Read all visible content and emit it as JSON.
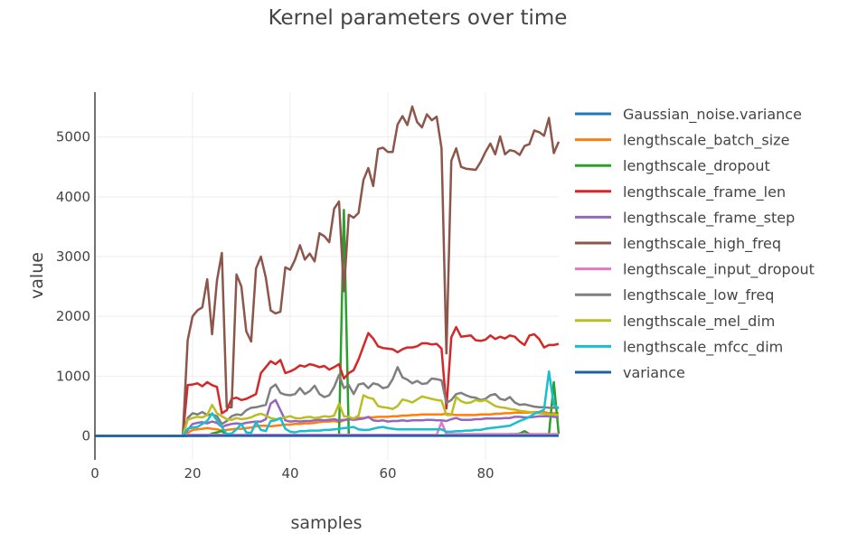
{
  "chart_data": {
    "type": "line",
    "title": "Kernel parameters over time",
    "xlabel": "samples",
    "ylabel": "value",
    "xlim": [
      0,
      95
    ],
    "ylim": [
      -400,
      5750
    ],
    "xticks": [
      0,
      20,
      40,
      60,
      80
    ],
    "yticks": [
      0,
      1000,
      2000,
      3000,
      4000,
      5000
    ],
    "grid": true,
    "legend": "right",
    "x": [
      0,
      1,
      2,
      3,
      4,
      5,
      6,
      7,
      8,
      9,
      10,
      11,
      12,
      13,
      14,
      15,
      16,
      17,
      18,
      19,
      20,
      21,
      22,
      23,
      24,
      25,
      26,
      27,
      28,
      29,
      30,
      31,
      32,
      33,
      34,
      35,
      36,
      37,
      38,
      39,
      40,
      41,
      42,
      43,
      44,
      45,
      46,
      47,
      48,
      49,
      50,
      51,
      52,
      53,
      54,
      55,
      56,
      57,
      58,
      59,
      60,
      61,
      62,
      63,
      64,
      65,
      66,
      67,
      68,
      69,
      70,
      71,
      72,
      73,
      74,
      75,
      76,
      77,
      78,
      79,
      80,
      81,
      82,
      83,
      84,
      85,
      86,
      87,
      88,
      89,
      90,
      91,
      92,
      93,
      94,
      95
    ],
    "series": [
      {
        "name": "Gaussian_noise.variance",
        "color": "#1f77b4",
        "values": [
          0,
          0,
          0,
          0,
          0,
          0,
          0,
          0,
          0,
          0,
          0,
          0,
          0,
          0,
          0,
          0,
          0,
          0,
          0,
          5,
          5,
          5,
          5,
          5,
          5,
          5,
          5,
          5,
          5,
          5,
          5,
          5,
          5,
          5,
          5,
          5,
          5,
          5,
          5,
          5,
          5,
          5,
          5,
          5,
          5,
          5,
          5,
          5,
          5,
          5,
          5,
          5,
          5,
          5,
          5,
          5,
          5,
          5,
          5,
          5,
          5,
          5,
          5,
          5,
          5,
          5,
          5,
          5,
          5,
          5,
          5,
          5,
          5,
          5,
          5,
          5,
          5,
          5,
          5,
          5,
          5,
          5,
          5,
          5,
          5,
          5,
          5,
          5,
          5,
          5,
          5,
          5,
          5,
          5,
          5,
          5
        ]
      },
      {
        "name": "lengthscale_batch_size",
        "color": "#ff7f0e",
        "values": [
          0,
          0,
          0,
          0,
          0,
          0,
          0,
          0,
          0,
          0,
          0,
          0,
          0,
          0,
          0,
          0,
          0,
          0,
          0,
          50,
          100,
          110,
          120,
          130,
          120,
          110,
          90,
          100,
          110,
          120,
          120,
          130,
          140,
          160,
          170,
          170,
          160,
          170,
          180,
          190,
          190,
          200,
          200,
          210,
          210,
          220,
          230,
          240,
          240,
          250,
          230,
          260,
          280,
          290,
          300,
          300,
          310,
          310,
          320,
          320,
          320,
          330,
          330,
          340,
          340,
          350,
          350,
          360,
          360,
          360,
          360,
          360,
          370,
          360,
          350,
          350,
          350,
          350,
          350,
          360,
          360,
          360,
          370,
          370,
          380,
          380,
          390,
          390,
          390,
          390,
          400,
          400,
          400,
          380,
          380,
          380
        ]
      },
      {
        "name": "lengthscale_dropout",
        "color": "#2ca02c",
        "values": [
          0,
          0,
          0,
          0,
          0,
          0,
          0,
          0,
          0,
          0,
          0,
          0,
          0,
          0,
          0,
          0,
          0,
          0,
          0,
          0,
          0,
          0,
          0,
          0,
          40,
          60,
          80,
          20,
          10,
          10,
          10,
          10,
          10,
          10,
          10,
          10,
          10,
          10,
          10,
          10,
          10,
          10,
          10,
          10,
          10,
          10,
          10,
          10,
          10,
          10,
          10,
          3780,
          10,
          10,
          10,
          10,
          10,
          10,
          10,
          10,
          10,
          10,
          10,
          10,
          10,
          10,
          10,
          10,
          10,
          10,
          10,
          10,
          10,
          10,
          10,
          10,
          10,
          10,
          10,
          10,
          10,
          10,
          10,
          10,
          10,
          30,
          30,
          40,
          80,
          30,
          20,
          20,
          20,
          20,
          900,
          30
        ]
      },
      {
        "name": "lengthscale_frame_len",
        "color": "#d62728",
        "values": [
          0,
          0,
          0,
          0,
          0,
          0,
          0,
          0,
          0,
          0,
          0,
          0,
          0,
          0,
          0,
          0,
          0,
          0,
          0,
          850,
          860,
          880,
          830,
          900,
          850,
          820,
          380,
          430,
          620,
          640,
          600,
          620,
          660,
          700,
          1050,
          1150,
          1250,
          1200,
          1270,
          1050,
          1080,
          1120,
          1180,
          1160,
          1200,
          1180,
          1150,
          1170,
          1110,
          1150,
          1200,
          960,
          1050,
          1100,
          1280,
          1500,
          1720,
          1630,
          1500,
          1470,
          1460,
          1450,
          1400,
          1450,
          1480,
          1480,
          1500,
          1550,
          1550,
          1530,
          1540,
          1460,
          460,
          1650,
          1820,
          1660,
          1670,
          1680,
          1600,
          1590,
          1610,
          1680,
          1620,
          1660,
          1630,
          1680,
          1660,
          1580,
          1520,
          1680,
          1700,
          1620,
          1480,
          1520,
          1520,
          1540
        ]
      },
      {
        "name": "lengthscale_frame_step",
        "color": "#9467bd",
        "values": [
          0,
          0,
          0,
          0,
          0,
          0,
          0,
          0,
          0,
          0,
          0,
          0,
          0,
          0,
          0,
          0,
          0,
          0,
          0,
          100,
          200,
          220,
          230,
          210,
          240,
          220,
          150,
          180,
          200,
          210,
          200,
          220,
          230,
          240,
          240,
          280,
          540,
          600,
          430,
          260,
          240,
          250,
          240,
          250,
          250,
          260,
          270,
          260,
          270,
          280,
          260,
          270,
          280,
          270,
          280,
          290,
          320,
          260,
          250,
          260,
          240,
          250,
          250,
          260,
          250,
          260,
          260,
          260,
          270,
          270,
          260,
          260,
          250,
          280,
          300,
          270,
          270,
          270,
          280,
          280,
          290,
          290,
          290,
          290,
          300,
          300,
          320,
          320,
          310,
          310,
          320,
          330,
          330,
          330,
          320,
          310
        ]
      },
      {
        "name": "lengthscale_high_freq",
        "color": "#8c564b",
        "values": [
          0,
          0,
          0,
          0,
          0,
          0,
          0,
          0,
          0,
          0,
          0,
          0,
          0,
          0,
          0,
          0,
          0,
          0,
          0,
          1600,
          2000,
          2100,
          2150,
          2620,
          1700,
          2600,
          3060,
          480,
          480,
          2700,
          2500,
          1750,
          1580,
          2800,
          3000,
          2650,
          2100,
          2050,
          2080,
          2820,
          2780,
          2950,
          3190,
          2950,
          3050,
          2920,
          3390,
          3340,
          3240,
          3800,
          3920,
          2420,
          3700,
          3650,
          3730,
          4280,
          4480,
          4180,
          4800,
          4820,
          4750,
          4750,
          5210,
          5350,
          5200,
          5510,
          5250,
          5160,
          5380,
          5280,
          5340,
          4810,
          1380,
          4600,
          4810,
          4500,
          4470,
          4460,
          4450,
          4580,
          4750,
          4890,
          4710,
          5010,
          4710,
          4780,
          4760,
          4700,
          4850,
          4880,
          5110,
          5080,
          5020,
          5320,
          4730,
          4920
        ]
      },
      {
        "name": "lengthscale_input_dropout",
        "color": "#e377c2",
        "values": [
          0,
          0,
          0,
          0,
          0,
          0,
          0,
          0,
          0,
          0,
          0,
          0,
          0,
          0,
          0,
          0,
          0,
          0,
          0,
          20,
          20,
          20,
          20,
          20,
          20,
          20,
          20,
          20,
          20,
          20,
          20,
          20,
          20,
          20,
          20,
          20,
          20,
          20,
          20,
          20,
          20,
          20,
          20,
          20,
          20,
          20,
          20,
          20,
          20,
          20,
          20,
          20,
          20,
          20,
          20,
          20,
          20,
          20,
          20,
          20,
          20,
          20,
          20,
          20,
          20,
          20,
          20,
          20,
          20,
          20,
          20,
          230,
          30,
          30,
          30,
          30,
          30,
          30,
          30,
          30,
          30,
          30,
          30,
          30,
          30,
          30,
          30,
          30,
          30,
          30,
          30,
          30,
          30,
          30,
          30,
          30
        ]
      },
      {
        "name": "lengthscale_low_freq",
        "color": "#7f7f7f",
        "values": [
          0,
          0,
          0,
          0,
          0,
          0,
          0,
          0,
          0,
          0,
          0,
          0,
          0,
          0,
          0,
          0,
          0,
          0,
          0,
          300,
          380,
          360,
          400,
          350,
          360,
          330,
          200,
          250,
          330,
          360,
          350,
          430,
          470,
          480,
          500,
          520,
          800,
          860,
          720,
          690,
          680,
          700,
          800,
          700,
          750,
          840,
          700,
          650,
          680,
          820,
          1020,
          800,
          850,
          700,
          860,
          880,
          800,
          880,
          860,
          800,
          820,
          950,
          1150,
          980,
          940,
          880,
          920,
          870,
          880,
          960,
          950,
          930,
          550,
          600,
          700,
          720,
          680,
          650,
          640,
          600,
          620,
          680,
          700,
          620,
          600,
          650,
          560,
          520,
          530,
          510,
          490,
          480,
          480,
          470,
          470,
          470
        ]
      },
      {
        "name": "lengthscale_mel_dim",
        "color": "#bcbd22",
        "values": [
          0,
          0,
          0,
          0,
          0,
          0,
          0,
          0,
          0,
          0,
          0,
          0,
          0,
          0,
          0,
          0,
          0,
          0,
          0,
          270,
          300,
          320,
          310,
          350,
          520,
          380,
          330,
          280,
          270,
          300,
          280,
          290,
          310,
          350,
          370,
          340,
          300,
          280,
          290,
          310,
          330,
          300,
          290,
          310,
          320,
          300,
          310,
          330,
          320,
          340,
          540,
          330,
          320,
          290,
          340,
          680,
          640,
          620,
          500,
          480,
          470,
          450,
          500,
          610,
          590,
          560,
          610,
          660,
          640,
          620,
          600,
          590,
          350,
          350,
          650,
          580,
          550,
          560,
          600,
          580,
          600,
          550,
          500,
          480,
          470,
          450,
          440,
          420,
          410,
          400,
          390,
          380,
          370,
          360,
          360,
          350
        ]
      },
      {
        "name": "lengthscale_mfcc_dim",
        "color": "#17becf",
        "values": [
          0,
          0,
          0,
          0,
          0,
          0,
          0,
          0,
          0,
          0,
          0,
          0,
          0,
          0,
          0,
          0,
          0,
          0,
          0,
          120,
          140,
          150,
          200,
          250,
          380,
          260,
          150,
          30,
          40,
          110,
          200,
          60,
          50,
          230,
          100,
          80,
          250,
          260,
          300,
          120,
          70,
          60,
          80,
          80,
          90,
          90,
          90,
          100,
          100,
          110,
          120,
          130,
          140,
          150,
          110,
          100,
          100,
          120,
          140,
          150,
          130,
          120,
          110,
          110,
          110,
          110,
          110,
          110,
          110,
          110,
          110,
          110,
          70,
          70,
          80,
          80,
          90,
          90,
          100,
          100,
          120,
          130,
          140,
          150,
          160,
          170,
          210,
          250,
          280,
          320,
          370,
          400,
          440,
          1080,
          520,
          460
        ]
      },
      {
        "name": "variance",
        "color": "#1f5fa8",
        "values": [
          0,
          0,
          0,
          0,
          0,
          0,
          0,
          0,
          0,
          0,
          0,
          0,
          0,
          0,
          0,
          0,
          0,
          0,
          0,
          2,
          2,
          2,
          2,
          2,
          2,
          2,
          2,
          2,
          2,
          2,
          2,
          2,
          2,
          2,
          2,
          2,
          2,
          2,
          2,
          2,
          2,
          2,
          2,
          2,
          2,
          2,
          2,
          2,
          2,
          2,
          2,
          2,
          2,
          2,
          2,
          2,
          2,
          2,
          2,
          2,
          2,
          2,
          2,
          2,
          2,
          2,
          2,
          2,
          2,
          2,
          2,
          2,
          2,
          2,
          2,
          2,
          2,
          2,
          2,
          2,
          2,
          2,
          2,
          2,
          2,
          2,
          2,
          2,
          2,
          2,
          2,
          2,
          2,
          2,
          2,
          2
        ]
      }
    ]
  }
}
